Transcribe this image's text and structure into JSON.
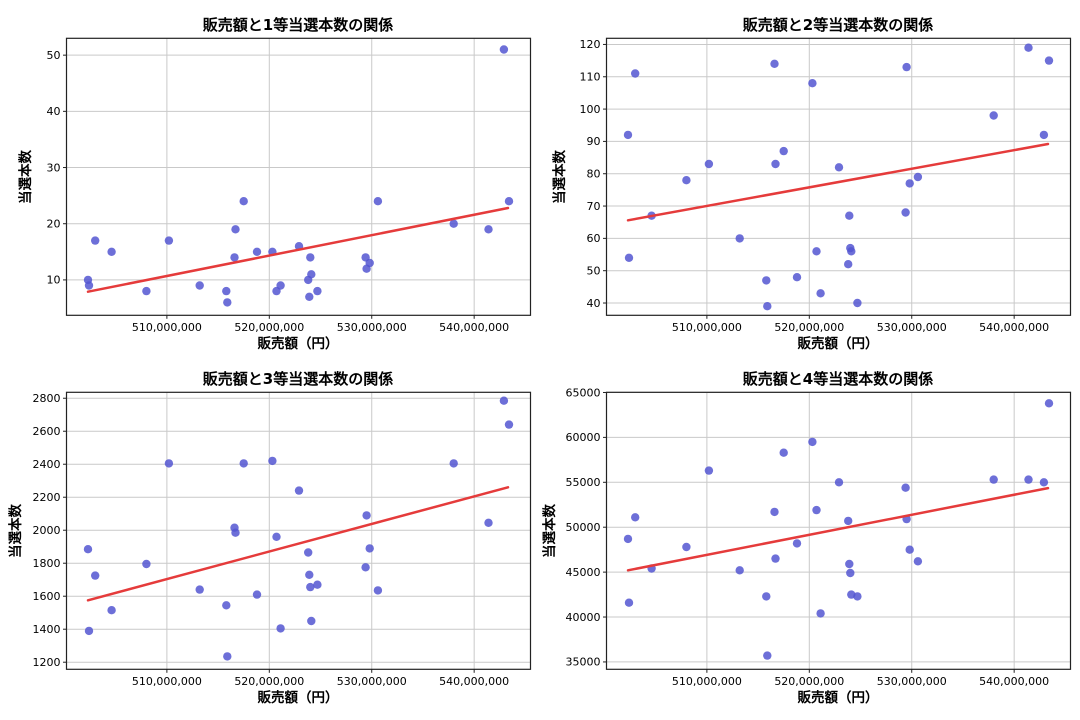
{
  "colors": {
    "dot": "#5456d1",
    "trend_line": "#e53b3b",
    "grid": "#c9c9c9",
    "axis": "#222222",
    "text": "#000000",
    "background": "#ffffff"
  },
  "chart_data": [
    {
      "type": "scatter",
      "title": "販売額と1等当選本数の関係",
      "xlabel": "販売額（円）",
      "ylabel": "当選本数",
      "grid": true,
      "legend": "none",
      "xlim": [
        500200000,
        545500000
      ],
      "ylim": [
        3.7,
        53.0
      ],
      "xticks": {
        "values": [
          510000000,
          520000000,
          530000000,
          540000000
        ],
        "labels": [
          "510,000,000",
          "520,000,000",
          "530,000,000",
          "540,000,000"
        ]
      },
      "yticks": [
        10,
        20,
        30,
        40,
        50
      ],
      "x": [
        502300000,
        502400000,
        503000000,
        504600000,
        508000000,
        510200000,
        513200000,
        515800000,
        515900000,
        516600000,
        516700000,
        517500000,
        518800000,
        520300000,
        520700000,
        521100000,
        522900000,
        523800000,
        523900000,
        524000000,
        524100000,
        524700000,
        529400000,
        529500000,
        529800000,
        530600000,
        538000000,
        541400000,
        542900000,
        543400000
      ],
      "y": [
        10,
        9,
        17,
        15,
        8,
        17,
        9,
        8,
        6,
        14,
        19,
        24,
        15,
        15,
        8,
        9,
        16,
        10,
        7,
        14,
        11,
        8,
        14,
        12,
        13,
        24,
        20,
        19,
        51,
        24
      ],
      "trend": {
        "x": [
          502300000,
          543300000
        ],
        "y": [
          7.9,
          22.8
        ]
      }
    },
    {
      "type": "scatter",
      "title": "販売額と2等当選本数の関係",
      "xlabel": "販売額（円）",
      "ylabel": "当選本数",
      "grid": true,
      "legend": "none",
      "xlim": [
        500200000,
        545500000
      ],
      "ylim": [
        36.2,
        121.9
      ],
      "xticks": {
        "values": [
          510000000,
          520000000,
          530000000,
          540000000
        ],
        "labels": [
          "510,000,000",
          "520,000,000",
          "530,000,000",
          "540,000,000"
        ]
      },
      "yticks": [
        40,
        50,
        60,
        70,
        80,
        90,
        100,
        110,
        120
      ],
      "x": [
        502300000,
        502400000,
        503000000,
        504600000,
        508000000,
        510200000,
        513200000,
        515800000,
        515900000,
        516600000,
        516700000,
        517500000,
        518800000,
        520300000,
        520700000,
        521100000,
        522900000,
        523800000,
        523900000,
        524000000,
        524100000,
        524700000,
        529400000,
        529500000,
        529800000,
        530600000,
        538000000,
        541400000,
        542900000,
        543400000
      ],
      "y": [
        92,
        54,
        111,
        67,
        78,
        83,
        60,
        47,
        39,
        114,
        83,
        87,
        48,
        108,
        56,
        43,
        82,
        52,
        67,
        57,
        56,
        40,
        68,
        113,
        77,
        79,
        98,
        119,
        92,
        115
      ],
      "trend": {
        "x": [
          502300000,
          543300000
        ],
        "y": [
          65.6,
          89.2
        ]
      }
    },
    {
      "type": "scatter",
      "title": "販売額と3等当選本数の関係",
      "xlabel": "販売額（円）",
      "ylabel": "当選本数",
      "grid": true,
      "legend": "none",
      "xlim": [
        500200000,
        545500000
      ],
      "ylim": [
        1157,
        2836
      ],
      "xticks": {
        "values": [
          510000000,
          520000000,
          530000000,
          540000000
        ],
        "labels": [
          "510,000,000",
          "520,000,000",
          "530,000,000",
          "540,000,000"
        ]
      },
      "yticks": [
        1200,
        1400,
        1600,
        1800,
        2000,
        2200,
        2400,
        2600,
        2800
      ],
      "x": [
        502300000,
        502400000,
        503000000,
        504600000,
        508000000,
        510200000,
        513200000,
        515800000,
        515900000,
        516600000,
        516700000,
        517500000,
        518800000,
        520300000,
        520700000,
        521100000,
        522900000,
        523800000,
        523900000,
        524000000,
        524100000,
        524700000,
        529400000,
        529500000,
        529800000,
        530600000,
        538000000,
        541400000,
        542900000,
        543400000
      ],
      "y": [
        1885,
        1390,
        1725,
        1515,
        1795,
        2405,
        1640,
        1545,
        1235,
        2015,
        1985,
        2405,
        1610,
        2420,
        1960,
        1405,
        2240,
        1865,
        1730,
        1655,
        1450,
        1670,
        1775,
        2090,
        1890,
        1635,
        2405,
        2045,
        2785,
        2640
      ],
      "trend": {
        "x": [
          502300000,
          543300000
        ],
        "y": [
          1575,
          2260
        ]
      }
    },
    {
      "type": "scatter",
      "title": "販売額と4等当選本数の関係",
      "xlabel": "販売額（円）",
      "ylabel": "当選本数",
      "grid": true,
      "legend": "none",
      "xlim": [
        500200000,
        545500000
      ],
      "ylim": [
        34180,
        65020
      ],
      "xticks": {
        "values": [
          510000000,
          520000000,
          530000000,
          540000000
        ],
        "labels": [
          "510,000,000",
          "520,000,000",
          "530,000,000",
          "540,000,000"
        ]
      },
      "yticks": [
        35000,
        40000,
        45000,
        50000,
        55000,
        60000,
        65000
      ],
      "x": [
        502300000,
        502400000,
        503000000,
        504600000,
        508000000,
        510200000,
        513200000,
        515800000,
        515900000,
        516600000,
        516700000,
        517500000,
        518800000,
        520300000,
        520700000,
        521100000,
        522900000,
        523800000,
        523900000,
        524000000,
        524100000,
        524700000,
        529400000,
        529500000,
        529800000,
        530600000,
        538000000,
        541400000,
        542900000,
        543400000
      ],
      "y": [
        48700,
        41600,
        51100,
        45400,
        47800,
        56300,
        45200,
        42300,
        35700,
        51700,
        46500,
        58300,
        48200,
        59500,
        51900,
        40400,
        55000,
        50700,
        45900,
        44900,
        42500,
        42300,
        54400,
        50900,
        47500,
        46200,
        55300,
        55300,
        55000,
        63800
      ],
      "trend": {
        "x": [
          502300000,
          543300000
        ],
        "y": [
          45200,
          54350
        ]
      }
    }
  ]
}
